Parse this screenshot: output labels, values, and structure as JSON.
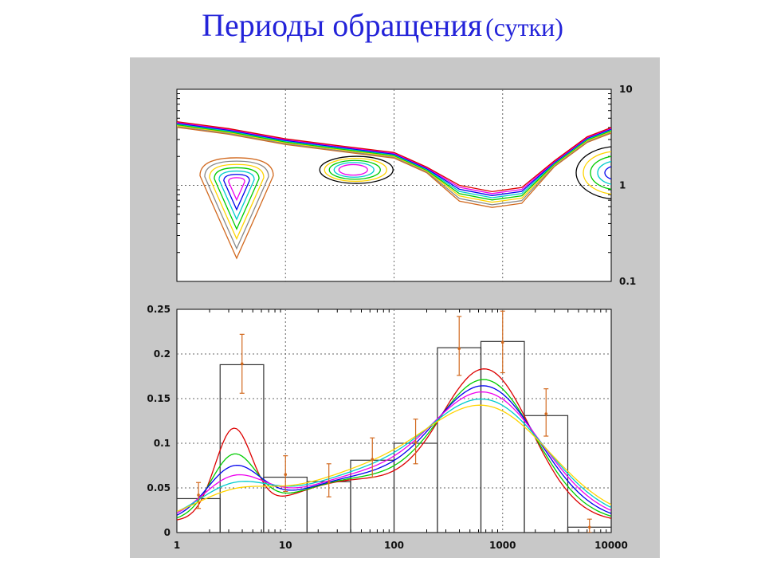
{
  "title": {
    "main": "Периоды обращения",
    "sub": "(сутки)"
  },
  "colors": {
    "title": "#2323d9",
    "panel_bg": "#c8c8c8",
    "plot_bg": "#ffffff",
    "errorbar": "#d2691e",
    "series": [
      "#000000",
      "#d2691e",
      "#888888",
      "#ffd400",
      "#00cc00",
      "#00cccc",
      "#0000ee",
      "#ee00ee",
      "#dd0000"
    ]
  },
  "chart_data": [
    {
      "type": "contour",
      "x_scale": "log",
      "y_scale": "log",
      "xlim": [
        1,
        10000
      ],
      "ylim": [
        0.1,
        10
      ],
      "yticks": [
        "10",
        "1",
        "0.1"
      ],
      "grid": true,
      "description_levels": 9
    },
    {
      "type": "bar",
      "x_scale": "log",
      "xlim": [
        1,
        10000
      ],
      "ylim": [
        0,
        0.25
      ],
      "xticks": [
        "1",
        "10",
        "100",
        "1000",
        "10000"
      ],
      "yticks": [
        "0.25",
        "0.2",
        "0.15",
        "0.1",
        "0.05",
        "0"
      ],
      "grid": true,
      "bins": [
        {
          "x0": 1,
          "x1": 2.5,
          "value": 0.038
        },
        {
          "x0": 2.5,
          "x1": 6.3,
          "value": 0.188
        },
        {
          "x0": 6.3,
          "x1": 15.8,
          "value": 0.062
        },
        {
          "x0": 15.8,
          "x1": 39.8,
          "value": 0.057
        },
        {
          "x0": 39.8,
          "x1": 100,
          "value": 0.081
        },
        {
          "x0": 100,
          "x1": 251,
          "value": 0.1
        },
        {
          "x0": 251,
          "x1": 631,
          "value": 0.207
        },
        {
          "x0": 631,
          "x1": 1585,
          "value": 0.214
        },
        {
          "x0": 1585,
          "x1": 3981,
          "value": 0.131
        },
        {
          "x0": 3981,
          "x1": 10000,
          "value": 0.006
        }
      ],
      "error_points": [
        {
          "x": 1.58,
          "y": 0.042,
          "lo": 0.027,
          "hi": 0.056
        },
        {
          "x": 3.98,
          "y": 0.189,
          "lo": 0.156,
          "hi": 0.222
        },
        {
          "x": 10.0,
          "y": 0.065,
          "lo": 0.046,
          "hi": 0.086
        },
        {
          "x": 25.1,
          "y": 0.056,
          "lo": 0.04,
          "hi": 0.077
        },
        {
          "x": 63.1,
          "y": 0.082,
          "lo": 0.062,
          "hi": 0.106
        },
        {
          "x": 158,
          "y": 0.101,
          "lo": 0.077,
          "hi": 0.127
        },
        {
          "x": 398,
          "y": 0.206,
          "lo": 0.176,
          "hi": 0.242
        },
        {
          "x": 1000,
          "y": 0.213,
          "lo": 0.179,
          "hi": 0.248
        },
        {
          "x": 2512,
          "y": 0.133,
          "lo": 0.108,
          "hi": 0.161
        },
        {
          "x": 6310,
          "y": 0.006,
          "lo": 0.0,
          "hi": 0.015
        }
      ],
      "series": [
        {
          "color": "#dd0000",
          "peak1": 0.126,
          "peak2": 0.186
        },
        {
          "color": "#00cc00",
          "peak1": 0.097,
          "peak2": 0.174
        },
        {
          "color": "#0000ee",
          "peak1": 0.084,
          "peak2": 0.167
        },
        {
          "color": "#ee00ee",
          "peak1": 0.073,
          "peak2": 0.16
        },
        {
          "color": "#00cccc",
          "peak1": 0.065,
          "peak2": 0.152
        },
        {
          "color": "#ffd400",
          "peak1": 0.058,
          "peak2": 0.145
        }
      ]
    }
  ]
}
